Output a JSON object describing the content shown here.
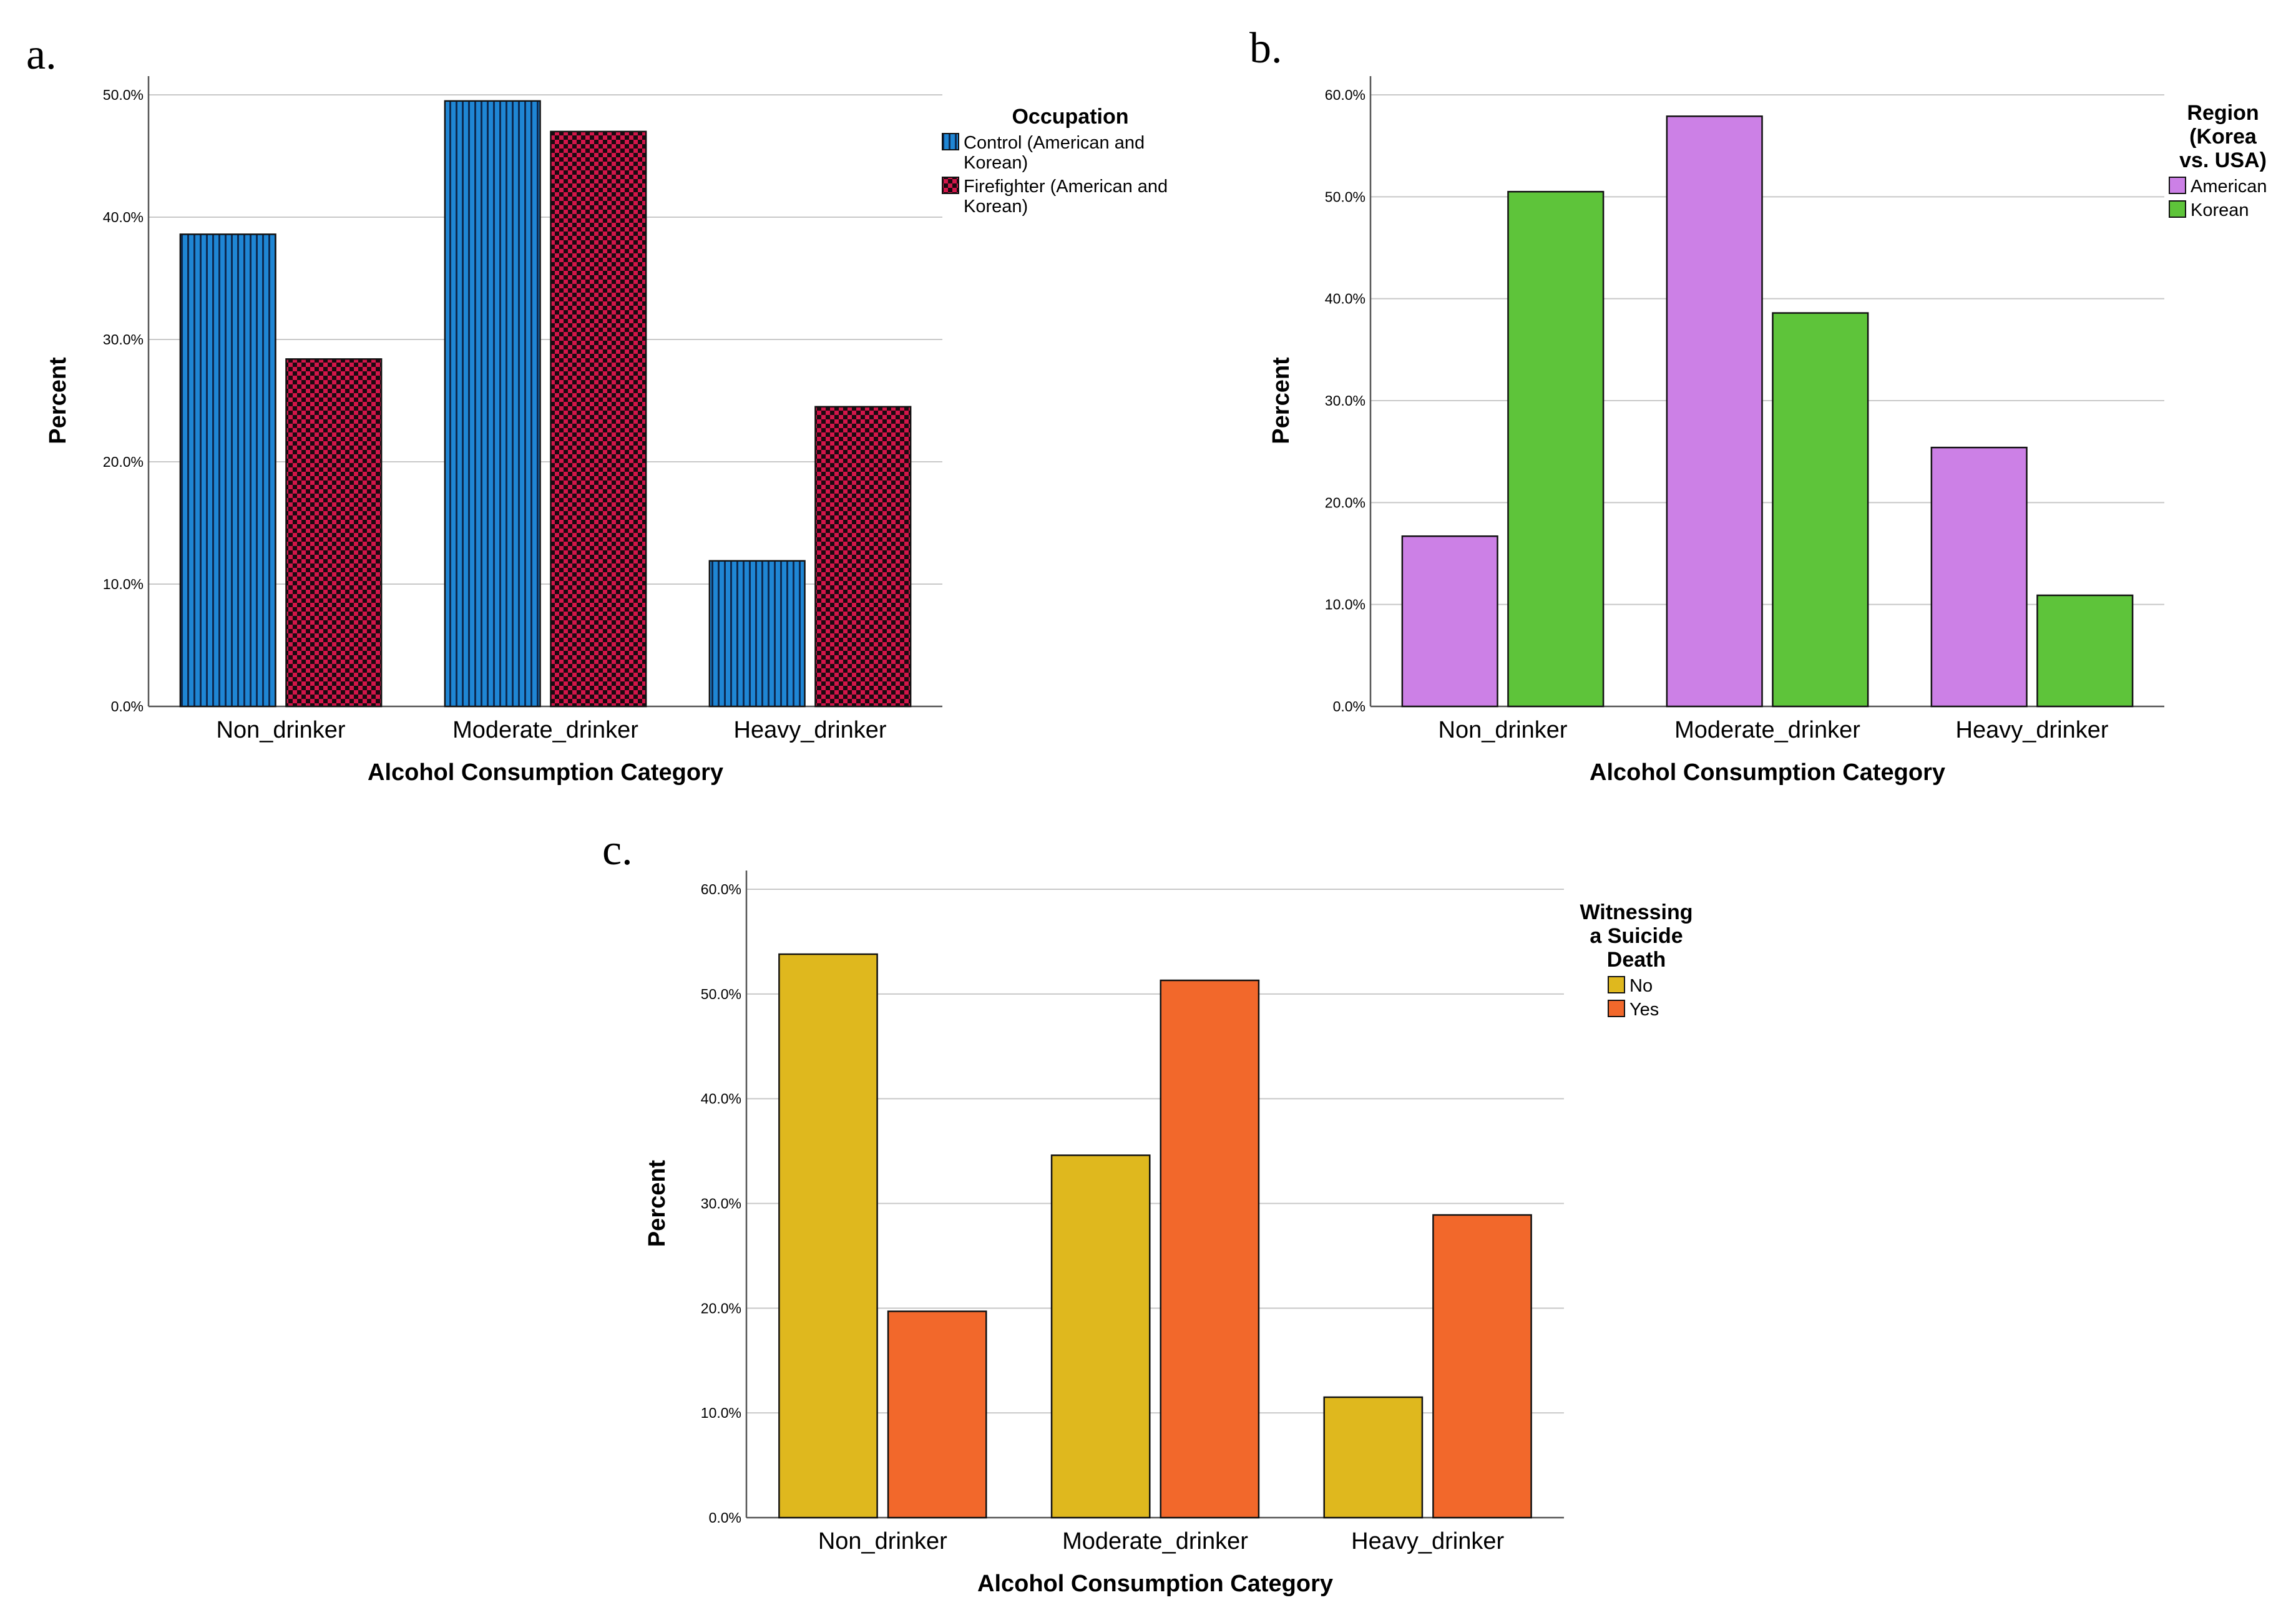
{
  "panels": {
    "a": "a.",
    "b": "b.",
    "c": "c."
  },
  "chart_data": [
    {
      "id": "a",
      "type": "bar",
      "title": "",
      "xlabel": "Alcohol Consumption Category",
      "ylabel": "Percent",
      "categories": [
        "Non_drinker",
        "Moderate_drinker",
        "Heavy_drinker"
      ],
      "ylim": [
        0,
        50
      ],
      "yticks": [
        "0.0%",
        "10.0%",
        "20.0%",
        "30.0%",
        "40.0%",
        "50.0%"
      ],
      "grid": true,
      "legend_title": [
        "Occupation"
      ],
      "legend_position": "top-right",
      "series": [
        {
          "name": "Control (American and Korean)",
          "legend_lines": [
            "Control (American and",
            "Korean)"
          ],
          "values": [
            38.6,
            49.5,
            11.9
          ],
          "color": "#1f86d4",
          "pattern": "vertical-stripes"
        },
        {
          "name": "Firefighter (American and Korean)",
          "legend_lines": [
            "Firefighter (American and",
            "Korean)"
          ],
          "values": [
            28.4,
            47.0,
            24.5
          ],
          "color": "#d3164a",
          "pattern": "checkerboard"
        }
      ]
    },
    {
      "id": "b",
      "type": "bar",
      "title": "",
      "xlabel": "Alcohol Consumption Category",
      "ylabel": "Percent",
      "categories": [
        "Non_drinker",
        "Moderate_drinker",
        "Heavy_drinker"
      ],
      "ylim": [
        0,
        60
      ],
      "yticks": [
        "0.0%",
        "10.0%",
        "20.0%",
        "30.0%",
        "40.0%",
        "50.0%",
        "60.0%"
      ],
      "grid": true,
      "legend_title": [
        "Region",
        "(Korea",
        "vs. USA)"
      ],
      "legend_position": "top-right",
      "series": [
        {
          "name": "American",
          "legend_lines": [
            "American"
          ],
          "values": [
            16.7,
            57.9,
            25.4
          ],
          "color": "#cc80e6"
        },
        {
          "name": "Korean",
          "legend_lines": [
            "Korean"
          ],
          "values": [
            50.5,
            38.6,
            10.9
          ],
          "color": "#5ec43a"
        }
      ]
    },
    {
      "id": "c",
      "type": "bar",
      "title": "",
      "xlabel": "Alcohol Consumption Category",
      "ylabel": "Percent",
      "categories": [
        "Non_drinker",
        "Moderate_drinker",
        "Heavy_drinker"
      ],
      "ylim": [
        0,
        60
      ],
      "yticks": [
        "0.0%",
        "10.0%",
        "20.0%",
        "30.0%",
        "40.0%",
        "50.0%",
        "60.0%"
      ],
      "grid": true,
      "legend_title": [
        "Witnessing",
        "a Suicide",
        "Death"
      ],
      "legend_position": "top-right",
      "series": [
        {
          "name": "No",
          "legend_lines": [
            "No"
          ],
          "values": [
            53.8,
            34.6,
            11.5
          ],
          "color": "#dfb81e"
        },
        {
          "name": "Yes",
          "legend_lines": [
            "Yes"
          ],
          "values": [
            19.7,
            51.3,
            28.9
          ],
          "color": "#f2682b"
        }
      ]
    }
  ]
}
